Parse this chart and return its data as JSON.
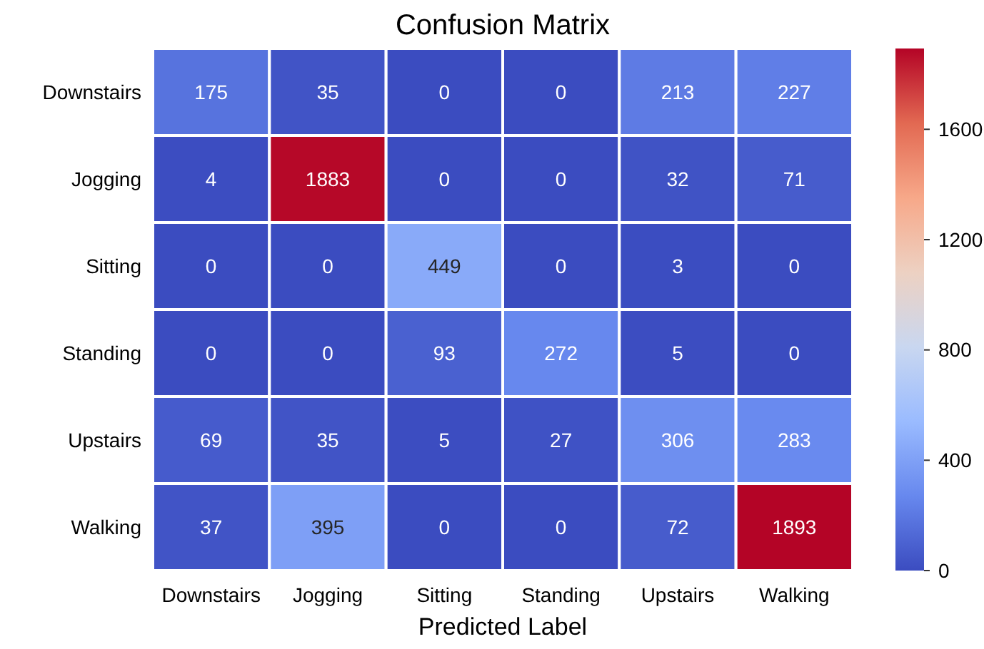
{
  "chart_data": {
    "type": "heatmap",
    "title": "Confusion Matrix",
    "xlabel": "Predicted Label",
    "categories": [
      "Downstairs",
      "Jogging",
      "Sitting",
      "Standing",
      "Upstairs",
      "Walking"
    ],
    "y_categories": [
      "Downstairs",
      "Jogging",
      "Sitting",
      "Standing",
      "Upstairs",
      "Walking"
    ],
    "cells": [
      [
        175,
        35,
        0,
        0,
        213,
        227
      ],
      [
        4,
        1883,
        0,
        0,
        32,
        71
      ],
      [
        0,
        0,
        449,
        0,
        3,
        0
      ],
      [
        0,
        0,
        93,
        272,
        5,
        0
      ],
      [
        69,
        35,
        5,
        27,
        306,
        283
      ],
      [
        37,
        395,
        0,
        0,
        72,
        1893
      ]
    ],
    "clim": [
      0,
      1893
    ],
    "cticks": [
      0,
      400,
      800,
      1200,
      1600
    ],
    "data_labels": true
  }
}
